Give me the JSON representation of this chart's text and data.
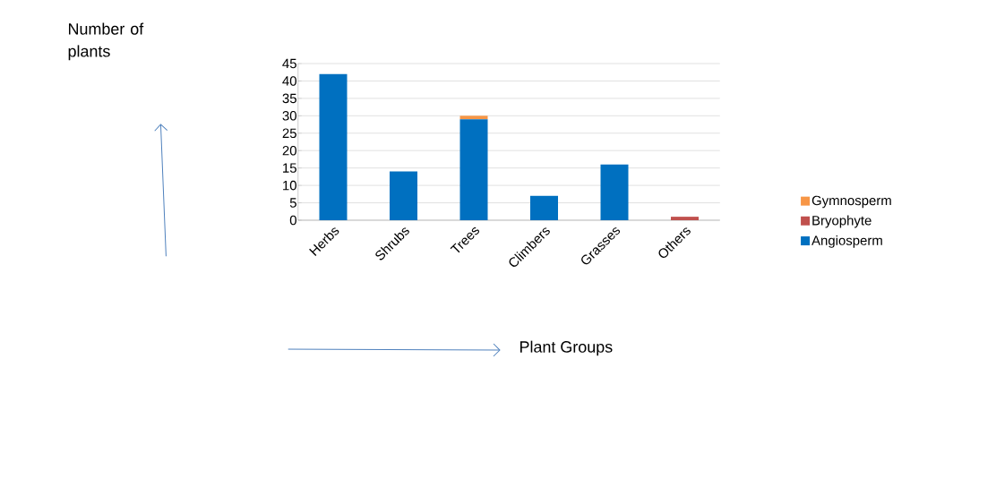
{
  "chart_data": {
    "type": "bar",
    "stacked": true,
    "xlabel": "Plant Groups",
    "annotations": [
      "Number of plants"
    ],
    "categories": [
      "Herbs",
      "Shrubs",
      "Trees",
      "Climbers",
      "Grasses",
      "Others"
    ],
    "series": [
      {
        "name": "Angiosperm",
        "color": "#0070c0",
        "values": [
          42,
          14,
          29,
          7,
          16,
          0
        ]
      },
      {
        "name": "Bryophyte",
        "color": "#c0504d",
        "values": [
          0,
          0,
          0,
          0,
          0,
          1
        ]
      },
      {
        "name": "Gymnosperm",
        "color": "#f79646",
        "values": [
          0,
          0,
          1,
          0,
          0,
          0
        ]
      }
    ],
    "ylim": [
      0,
      45
    ],
    "yticks": [
      0,
      5,
      10,
      15,
      20,
      25,
      30,
      35,
      40,
      45
    ],
    "grid": "y",
    "legend": "right"
  }
}
